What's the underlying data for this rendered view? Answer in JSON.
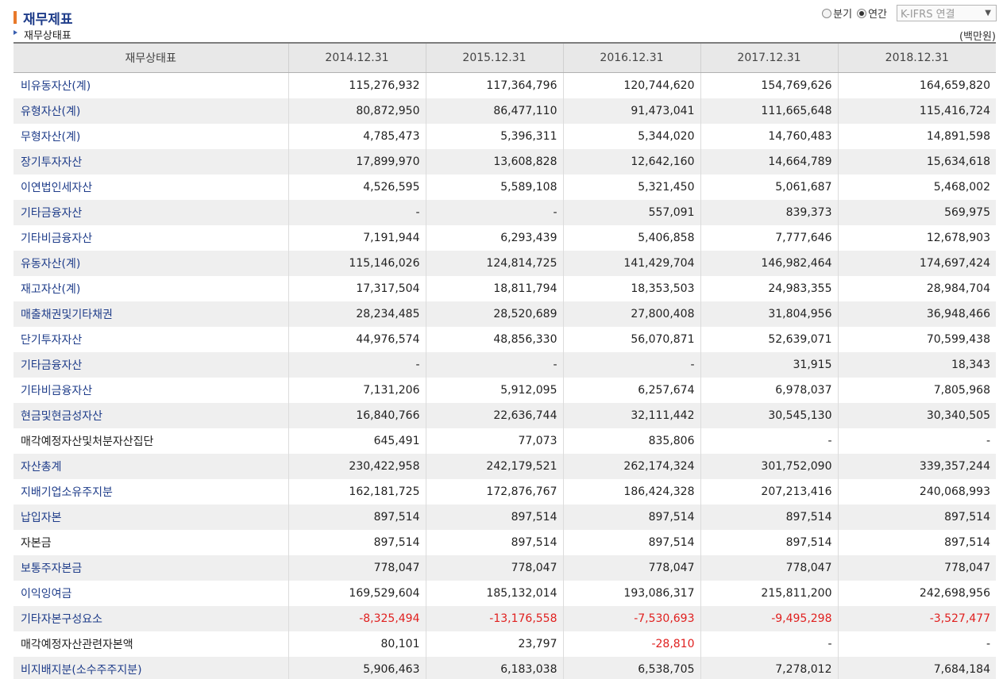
{
  "header": {
    "title": "재무제표",
    "subtitle": "재무상태표",
    "unit": "(백만원)"
  },
  "controls": {
    "radio_quarter_label": "분기",
    "radio_annual_label": "연간",
    "selected_period": "연간",
    "select_value": "K-IFRS 연결"
  },
  "table": {
    "columns": [
      "재무상태표",
      "2014.12.31",
      "2015.12.31",
      "2016.12.31",
      "2017.12.31",
      "2018.12.31"
    ],
    "rows": [
      {
        "label": "비유동자산(계)",
        "link": true,
        "values": [
          "115,276,932",
          "117,364,796",
          "120,744,620",
          "154,769,626",
          "164,659,820"
        ]
      },
      {
        "label": "유형자산(계)",
        "link": true,
        "values": [
          "80,872,950",
          "86,477,110",
          "91,473,041",
          "111,665,648",
          "115,416,724"
        ]
      },
      {
        "label": "무형자산(계)",
        "link": true,
        "values": [
          "4,785,473",
          "5,396,311",
          "5,344,020",
          "14,760,483",
          "14,891,598"
        ]
      },
      {
        "label": "장기투자자산",
        "link": true,
        "values": [
          "17,899,970",
          "13,608,828",
          "12,642,160",
          "14,664,789",
          "15,634,618"
        ]
      },
      {
        "label": "이연법인세자산",
        "link": true,
        "values": [
          "4,526,595",
          "5,589,108",
          "5,321,450",
          "5,061,687",
          "5,468,002"
        ]
      },
      {
        "label": "기타금융자산",
        "link": true,
        "values": [
          "-",
          "-",
          "557,091",
          "839,373",
          "569,975"
        ]
      },
      {
        "label": "기타비금융자산",
        "link": true,
        "values": [
          "7,191,944",
          "6,293,439",
          "5,406,858",
          "7,777,646",
          "12,678,903"
        ]
      },
      {
        "label": "유동자산(계)",
        "link": true,
        "values": [
          "115,146,026",
          "124,814,725",
          "141,429,704",
          "146,982,464",
          "174,697,424"
        ]
      },
      {
        "label": "재고자산(계)",
        "link": true,
        "values": [
          "17,317,504",
          "18,811,794",
          "18,353,503",
          "24,983,355",
          "28,984,704"
        ]
      },
      {
        "label": "매출채권및기타채권",
        "link": true,
        "values": [
          "28,234,485",
          "28,520,689",
          "27,800,408",
          "31,804,956",
          "36,948,466"
        ]
      },
      {
        "label": "단기투자자산",
        "link": true,
        "values": [
          "44,976,574",
          "48,856,330",
          "56,070,871",
          "52,639,071",
          "70,599,438"
        ]
      },
      {
        "label": "기타금융자산",
        "link": true,
        "values": [
          "-",
          "-",
          "-",
          "31,915",
          "18,343"
        ]
      },
      {
        "label": "기타비금융자산",
        "link": true,
        "values": [
          "7,131,206",
          "5,912,095",
          "6,257,674",
          "6,978,037",
          "7,805,968"
        ]
      },
      {
        "label": "현금및현금성자산",
        "link": true,
        "values": [
          "16,840,766",
          "22,636,744",
          "32,111,442",
          "30,545,130",
          "30,340,505"
        ]
      },
      {
        "label": "매각예정자산및처분자산집단",
        "link": false,
        "values": [
          "645,491",
          "77,073",
          "835,806",
          "-",
          "-"
        ]
      },
      {
        "label": "자산총계",
        "link": true,
        "values": [
          "230,422,958",
          "242,179,521",
          "262,174,324",
          "301,752,090",
          "339,357,244"
        ]
      },
      {
        "label": "지배기업소유주지분",
        "link": true,
        "values": [
          "162,181,725",
          "172,876,767",
          "186,424,328",
          "207,213,416",
          "240,068,993"
        ]
      },
      {
        "label": "납입자본",
        "link": true,
        "values": [
          "897,514",
          "897,514",
          "897,514",
          "897,514",
          "897,514"
        ]
      },
      {
        "label": "자본금",
        "link": false,
        "values": [
          "897,514",
          "897,514",
          "897,514",
          "897,514",
          "897,514"
        ]
      },
      {
        "label": "보통주자본금",
        "link": true,
        "values": [
          "778,047",
          "778,047",
          "778,047",
          "778,047",
          "778,047"
        ]
      },
      {
        "label": "이익잉여금",
        "link": true,
        "values": [
          "169,529,604",
          "185,132,014",
          "193,086,317",
          "215,811,200",
          "242,698,956"
        ]
      },
      {
        "label": "기타자본구성요소",
        "link": true,
        "values": [
          "-8,325,494",
          "-13,176,558",
          "-7,530,693",
          "-9,495,298",
          "-3,527,477"
        ]
      },
      {
        "label": "매각예정자산관련자본액",
        "link": false,
        "values": [
          "80,101",
          "23,797",
          "-28,810",
          "-",
          "-"
        ]
      },
      {
        "label": "비지배지분(소수주주지분)",
        "link": true,
        "values": [
          "5,906,463",
          "6,183,038",
          "6,538,705",
          "7,278,012",
          "7,684,184"
        ]
      }
    ]
  },
  "colors": {
    "title": "#1f3d8a",
    "link": "#1f3d8a",
    "negative": "#e0201f",
    "accent_mark": "#e8792b",
    "header_bg": "#e8e8e8",
    "stripe_bg": "#efefef"
  }
}
